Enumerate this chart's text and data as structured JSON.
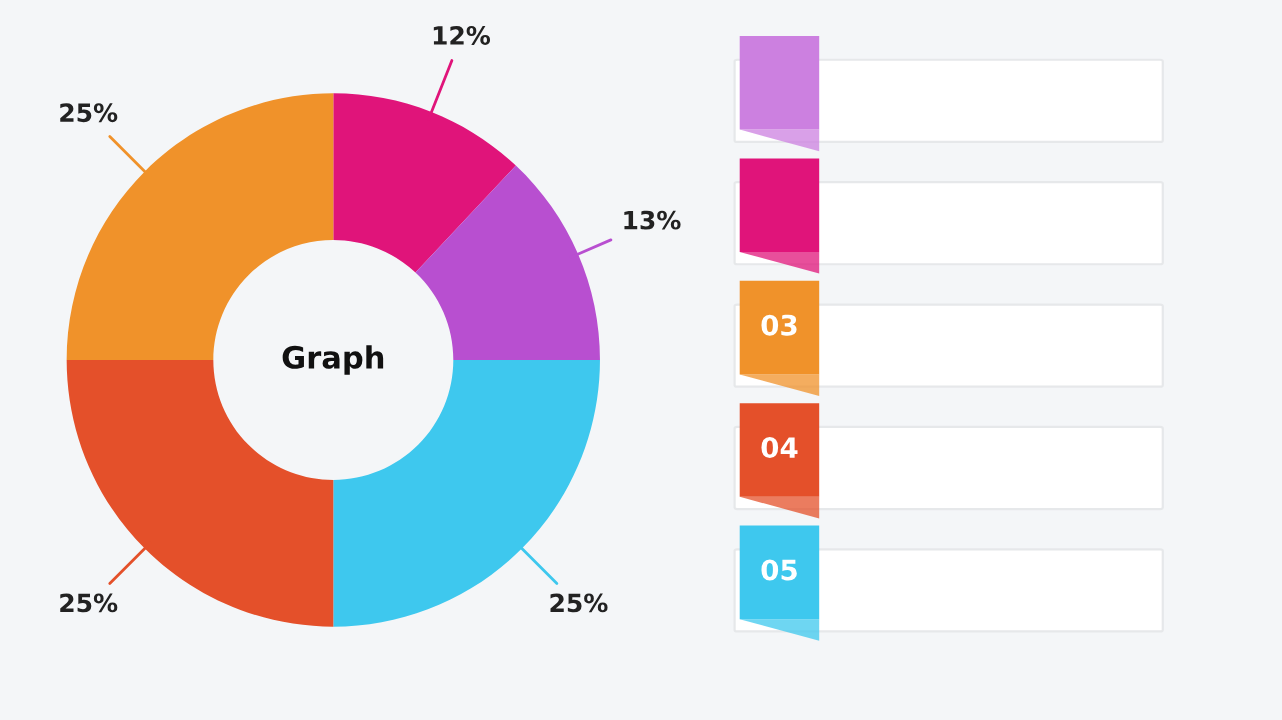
{
  "chart_data": {
    "type": "donut",
    "categories": [
      null,
      null,
      null,
      null,
      null
    ],
    "values": [
      12,
      13,
      25,
      25,
      25
    ],
    "colors": [
      "#e0147a",
      "#b84fd0",
      "#3ec8ee",
      "#e4502a",
      "#f0922a"
    ],
    "value_labels": [
      "12%",
      "13%",
      "25%",
      "25%",
      "25%"
    ],
    "annotations": [
      "Graph",
      "03",
      "04",
      "05"
    ]
  }
}
